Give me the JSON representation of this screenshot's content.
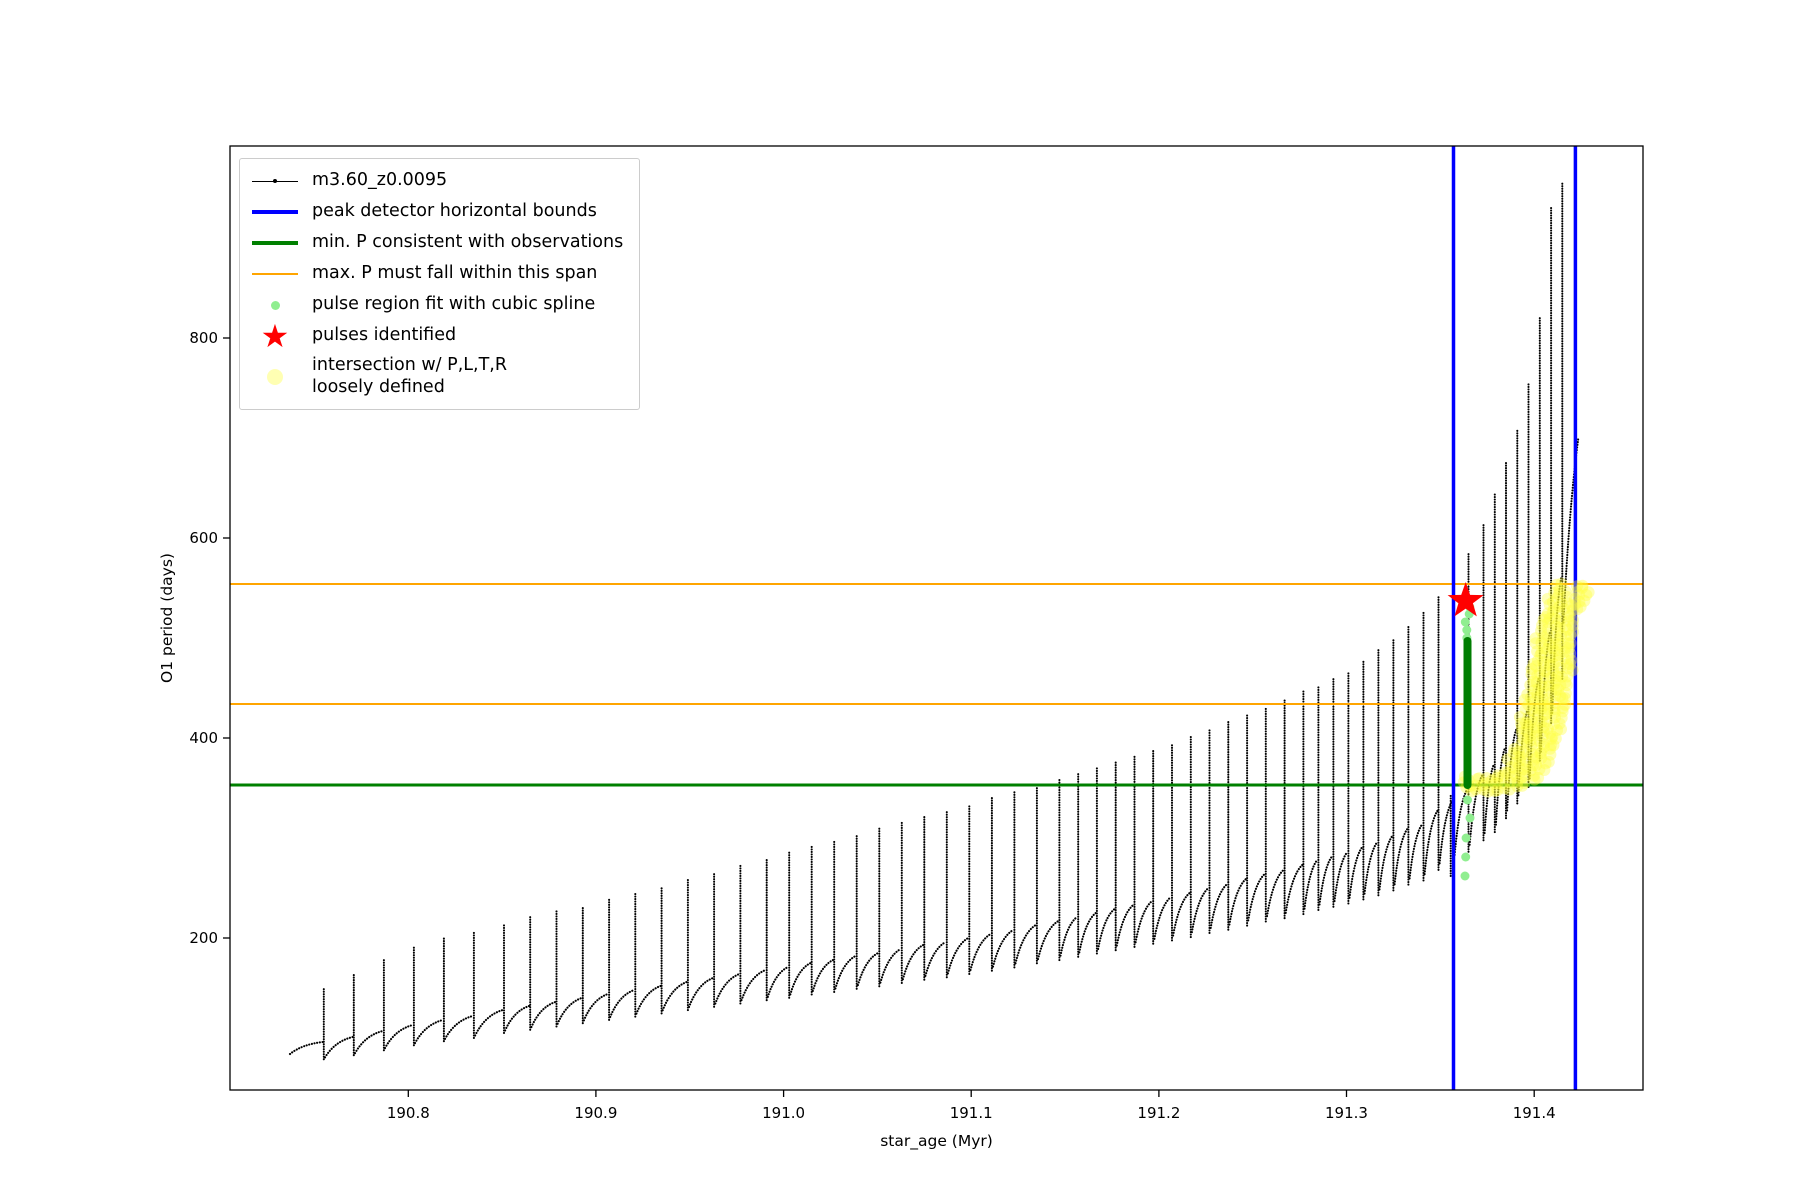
{
  "chart_data": {
    "type": "scatter",
    "title": "",
    "xlabel": "star_age (Myr)",
    "ylabel": "O1 period (days)",
    "xlim": [
      190.705,
      191.458
    ],
    "ylim": [
      48,
      992
    ],
    "xticks": [
      190.8,
      190.9,
      191.0,
      191.1,
      191.2,
      191.3,
      191.4
    ],
    "yticks": [
      200,
      400,
      600,
      800
    ],
    "grid": false,
    "legend_position": "upper left",
    "legend": [
      {
        "label": "m3.60_z0.0095",
        "marker": "line-dot",
        "color": "#000000"
      },
      {
        "label": "peak detector horizontal bounds",
        "marker": "thick-line",
        "color": "#0000ff"
      },
      {
        "label": "min. P consistent with observations",
        "marker": "thick-line",
        "color": "#008000"
      },
      {
        "label": "max. P must fall within this span",
        "marker": "line",
        "color": "#ffa500"
      },
      {
        "label": "pulse region fit with cubic spline",
        "marker": "dot-small",
        "color": "#90ee90"
      },
      {
        "label": "pulses identified",
        "marker": "star",
        "color": "#ff0000"
      },
      {
        "label": "intersection w/ P,L,T,R\nloosely defined",
        "marker": "dot-large",
        "color": "#ffffb3"
      }
    ],
    "series": {
      "name": "m3.60_z0.0095",
      "color": "#000000",
      "lead_in": [
        190.737,
        84
      ],
      "tail": [
        191.4235,
        700
      ],
      "undershoot": {
        "x": 191.3555,
        "y_low": 262,
        "y_high": 344
      },
      "spikes": [
        [
          190.755,
          96,
          150
        ],
        [
          190.771,
          101,
          164
        ],
        [
          190.787,
          107,
          178
        ],
        [
          190.803,
          113,
          192
        ],
        [
          190.819,
          118,
          200
        ],
        [
          190.835,
          122,
          207
        ],
        [
          190.851,
          128,
          215
        ],
        [
          190.865,
          132,
          221
        ],
        [
          190.879,
          136,
          227
        ],
        [
          190.893,
          140,
          232
        ],
        [
          190.907,
          144,
          239
        ],
        [
          190.921,
          148,
          246
        ],
        [
          190.935,
          152,
          252
        ],
        [
          190.949,
          156,
          259
        ],
        [
          190.963,
          160,
          266
        ],
        [
          190.977,
          164,
          273
        ],
        [
          190.991,
          168,
          280
        ],
        [
          191.003,
          171,
          287
        ],
        [
          191.015,
          175,
          292
        ],
        [
          191.027,
          178,
          298
        ],
        [
          191.039,
          182,
          304
        ],
        [
          191.051,
          185,
          311
        ],
        [
          191.063,
          189,
          317
        ],
        [
          191.075,
          193,
          322
        ],
        [
          191.087,
          196,
          328
        ],
        [
          191.099,
          200,
          334
        ],
        [
          191.111,
          204,
          341
        ],
        [
          191.123,
          208,
          347
        ],
        [
          191.135,
          213,
          352
        ],
        [
          191.147,
          217,
          358
        ],
        [
          191.157,
          221,
          364
        ],
        [
          191.167,
          225,
          370
        ],
        [
          191.177,
          229,
          376
        ],
        [
          191.187,
          233,
          382
        ],
        [
          191.197,
          237,
          388
        ],
        [
          191.207,
          241,
          395
        ],
        [
          191.217,
          245,
          402
        ],
        [
          191.227,
          250,
          409
        ],
        [
          191.237,
          254,
          416
        ],
        [
          191.247,
          259,
          423
        ],
        [
          191.257,
          264,
          431
        ],
        [
          191.267,
          268,
          439
        ],
        [
          191.277,
          273,
          447
        ],
        [
          191.285,
          278,
          453
        ],
        [
          191.293,
          282,
          459
        ],
        [
          191.301,
          286,
          466
        ],
        [
          191.309,
          291,
          477
        ],
        [
          191.317,
          296,
          488
        ],
        [
          191.325,
          302,
          498
        ],
        [
          191.333,
          309,
          511
        ],
        [
          191.341,
          314,
          527
        ],
        [
          191.349,
          327,
          543
        ],
        [
          191.357,
          337,
          562
        ],
        [
          191.365,
          349,
          585
        ],
        [
          191.373,
          363,
          615
        ],
        [
          191.379,
          373,
          645
        ],
        [
          191.385,
          390,
          675
        ],
        [
          191.391,
          408,
          708
        ],
        [
          191.397,
          428,
          756
        ],
        [
          191.403,
          460,
          822
        ],
        [
          191.409,
          506,
          930
        ],
        [
          191.415,
          560,
          955
        ]
      ]
    },
    "peak_detector_bounds": {
      "color": "#0000ff",
      "x_values": [
        191.357,
        191.422
      ]
    },
    "min_period_line": {
      "color": "#008000",
      "y": 353
    },
    "max_period_span": {
      "color": "#ffa500",
      "y_values": [
        434,
        554
      ]
    },
    "pulse_region": {
      "color_dense": "#007d02",
      "color_light": "#90ee90",
      "x": 191.3645,
      "dense_y": [
        353,
        497
      ],
      "light_y": [
        262,
        281,
        300,
        320,
        338,
        500,
        508,
        516,
        524,
        531
      ]
    },
    "pulses": {
      "color": "#ff0000",
      "points": [
        [
          191.3635,
          537
        ]
      ]
    },
    "intersection_region": {
      "color": "#ffff33",
      "strips": [
        [
          191.363,
          350,
          363
        ],
        [
          191.366,
          348,
          362
        ],
        [
          191.369,
          348,
          361
        ],
        [
          191.372,
          348,
          361
        ],
        [
          191.375,
          348,
          362
        ],
        [
          191.378,
          348,
          363
        ],
        [
          191.381,
          348,
          365
        ],
        [
          191.384,
          350,
          370
        ],
        [
          191.387,
          350,
          378
        ],
        [
          191.39,
          352,
          395
        ],
        [
          191.393,
          354,
          420
        ],
        [
          191.396,
          356,
          448
        ],
        [
          191.399,
          358,
          475
        ],
        [
          191.402,
          362,
          500
        ],
        [
          191.405,
          368,
          522
        ],
        [
          191.408,
          378,
          540
        ],
        [
          191.411,
          392,
          552
        ],
        [
          191.414,
          410,
          555
        ],
        [
          191.417,
          435,
          550
        ],
        [
          191.42,
          468,
          538
        ],
        [
          191.422,
          528,
          552
        ],
        [
          191.425,
          532,
          556
        ],
        [
          191.428,
          536,
          552
        ]
      ]
    }
  }
}
